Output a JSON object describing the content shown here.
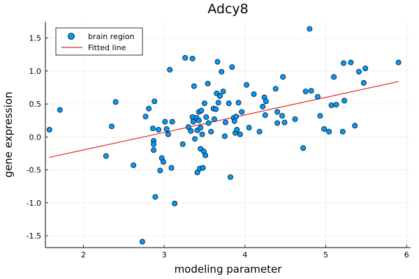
{
  "chart_data": {
    "type": "scatter",
    "title": "Adcy8",
    "xlabel": "modeling parameter",
    "ylabel": "gene expression",
    "xlim": [
      1.53,
      6.05
    ],
    "ylim": [
      -1.68,
      1.75
    ],
    "xticks": [
      2,
      3,
      4,
      5,
      6
    ],
    "yticks": [
      -1.5,
      -1.0,
      -0.5,
      0.0,
      0.5,
      1.0,
      1.5
    ],
    "xtick_labels": [
      "2",
      "3",
      "4",
      "5",
      "6"
    ],
    "ytick_labels": [
      "-1.5",
      "-1.0",
      "-0.5",
      "0.0",
      "0.5",
      "1.0",
      "1.5"
    ],
    "grid": true,
    "legend_position": "top-left",
    "series": [
      {
        "name": "brain region",
        "kind": "scatter",
        "color": "#009AFA",
        "points": [
          [
            1.58,
            0.11
          ],
          [
            1.71,
            0.41
          ],
          [
            2.28,
            -0.29
          ],
          [
            2.35,
            0.16
          ],
          [
            2.4,
            0.53
          ],
          [
            2.62,
            -0.43
          ],
          [
            2.73,
            -1.59
          ],
          [
            2.77,
            0.31
          ],
          [
            2.81,
            0.43
          ],
          [
            2.86,
            0.13
          ],
          [
            2.87,
            -0.06
          ],
          [
            2.87,
            -0.11
          ],
          [
            2.87,
            -0.2
          ],
          [
            2.88,
            0.54
          ],
          [
            2.89,
            -0.91
          ],
          [
            2.93,
            0.11
          ],
          [
            2.95,
            -0.51
          ],
          [
            2.97,
            -0.32
          ],
          [
            2.99,
            -0.38
          ],
          [
            3.01,
            0.23
          ],
          [
            3.03,
            0.12
          ],
          [
            3.05,
            0.04
          ],
          [
            3.07,
            1.02
          ],
          [
            3.09,
            -0.47
          ],
          [
            3.1,
            0.23
          ],
          [
            3.13,
            -1.01
          ],
          [
            3.23,
            -0.11
          ],
          [
            3.26,
            1.2
          ],
          [
            3.3,
            0.15
          ],
          [
            3.33,
            0.09
          ],
          [
            3.35,
            1.19
          ],
          [
            3.35,
            0.3
          ],
          [
            3.36,
            0.23
          ],
          [
            3.37,
            0.77
          ],
          [
            3.38,
            -0.03
          ],
          [
            3.4,
            0.29
          ],
          [
            3.41,
            -0.54
          ],
          [
            3.41,
            0.1
          ],
          [
            3.43,
            0.25
          ],
          [
            3.43,
            0.38
          ],
          [
            3.44,
            -0.48
          ],
          [
            3.45,
            -0.18
          ],
          [
            3.45,
            0.14
          ],
          [
            3.46,
            0.4
          ],
          [
            3.47,
            0.04
          ],
          [
            3.48,
            -0.47
          ],
          [
            3.49,
            -0.22
          ],
          [
            3.5,
            0.51
          ],
          [
            3.51,
            -0.28
          ],
          [
            3.52,
            0.3
          ],
          [
            3.54,
            0.81
          ],
          [
            3.55,
            0.21
          ],
          [
            3.58,
            0.08
          ],
          [
            3.61,
            0.43
          ],
          [
            3.62,
            0.27
          ],
          [
            3.64,
            0.42
          ],
          [
            3.65,
            0.66
          ],
          [
            3.66,
            1.14
          ],
          [
            3.67,
            0.52
          ],
          [
            3.69,
            0.62
          ],
          [
            3.71,
            0.99
          ],
          [
            3.73,
            0.69
          ],
          [
            3.75,
            0.01
          ],
          [
            3.76,
            0.22
          ],
          [
            3.8,
            0.51
          ],
          [
            3.82,
            -0.61
          ],
          [
            3.84,
            1.06
          ],
          [
            3.86,
            0.29
          ],
          [
            3.87,
            0.24
          ],
          [
            3.88,
            0.06
          ],
          [
            3.89,
            0.31
          ],
          [
            3.9,
            0.11
          ],
          [
            3.92,
            0.52
          ],
          [
            3.94,
            0.04
          ],
          [
            3.96,
            0.38
          ],
          [
            4.02,
            0.79
          ],
          [
            4.05,
            0.14
          ],
          [
            4.11,
            0.65
          ],
          [
            4.18,
            0.08
          ],
          [
            4.22,
            0.46
          ],
          [
            4.24,
            0.6
          ],
          [
            4.25,
            0.33
          ],
          [
            4.26,
            0.54
          ],
          [
            4.38,
            0.73
          ],
          [
            4.4,
            0.38
          ],
          [
            4.4,
            0.21
          ],
          [
            4.46,
            0.32
          ],
          [
            4.47,
            0.91
          ],
          [
            4.49,
            0.22
          ],
          [
            4.62,
            0.27
          ],
          [
            4.72,
            -0.17
          ],
          [
            4.75,
            0.69
          ],
          [
            4.8,
            1.64
          ],
          [
            4.82,
            0.7
          ],
          [
            4.9,
            0.61
          ],
          [
            4.93,
            0.32
          ],
          [
            4.98,
            0.12
          ],
          [
            5.04,
            0.08
          ],
          [
            5.07,
            0.48
          ],
          [
            5.1,
            0.91
          ],
          [
            5.13,
            0.49
          ],
          [
            5.21,
            0.08
          ],
          [
            5.22,
            1.12
          ],
          [
            5.23,
            0.55
          ],
          [
            5.31,
            1.13
          ],
          [
            5.36,
            0.17
          ],
          [
            5.41,
            0.99
          ],
          [
            5.47,
            0.82
          ],
          [
            5.49,
            1.04
          ],
          [
            5.9,
            1.13
          ]
        ]
      },
      {
        "name": "Fitted line",
        "kind": "line",
        "color": "#E0262A",
        "x": [
          1.58,
          5.9
        ],
        "y": [
          -0.31,
          0.84
        ]
      }
    ]
  }
}
